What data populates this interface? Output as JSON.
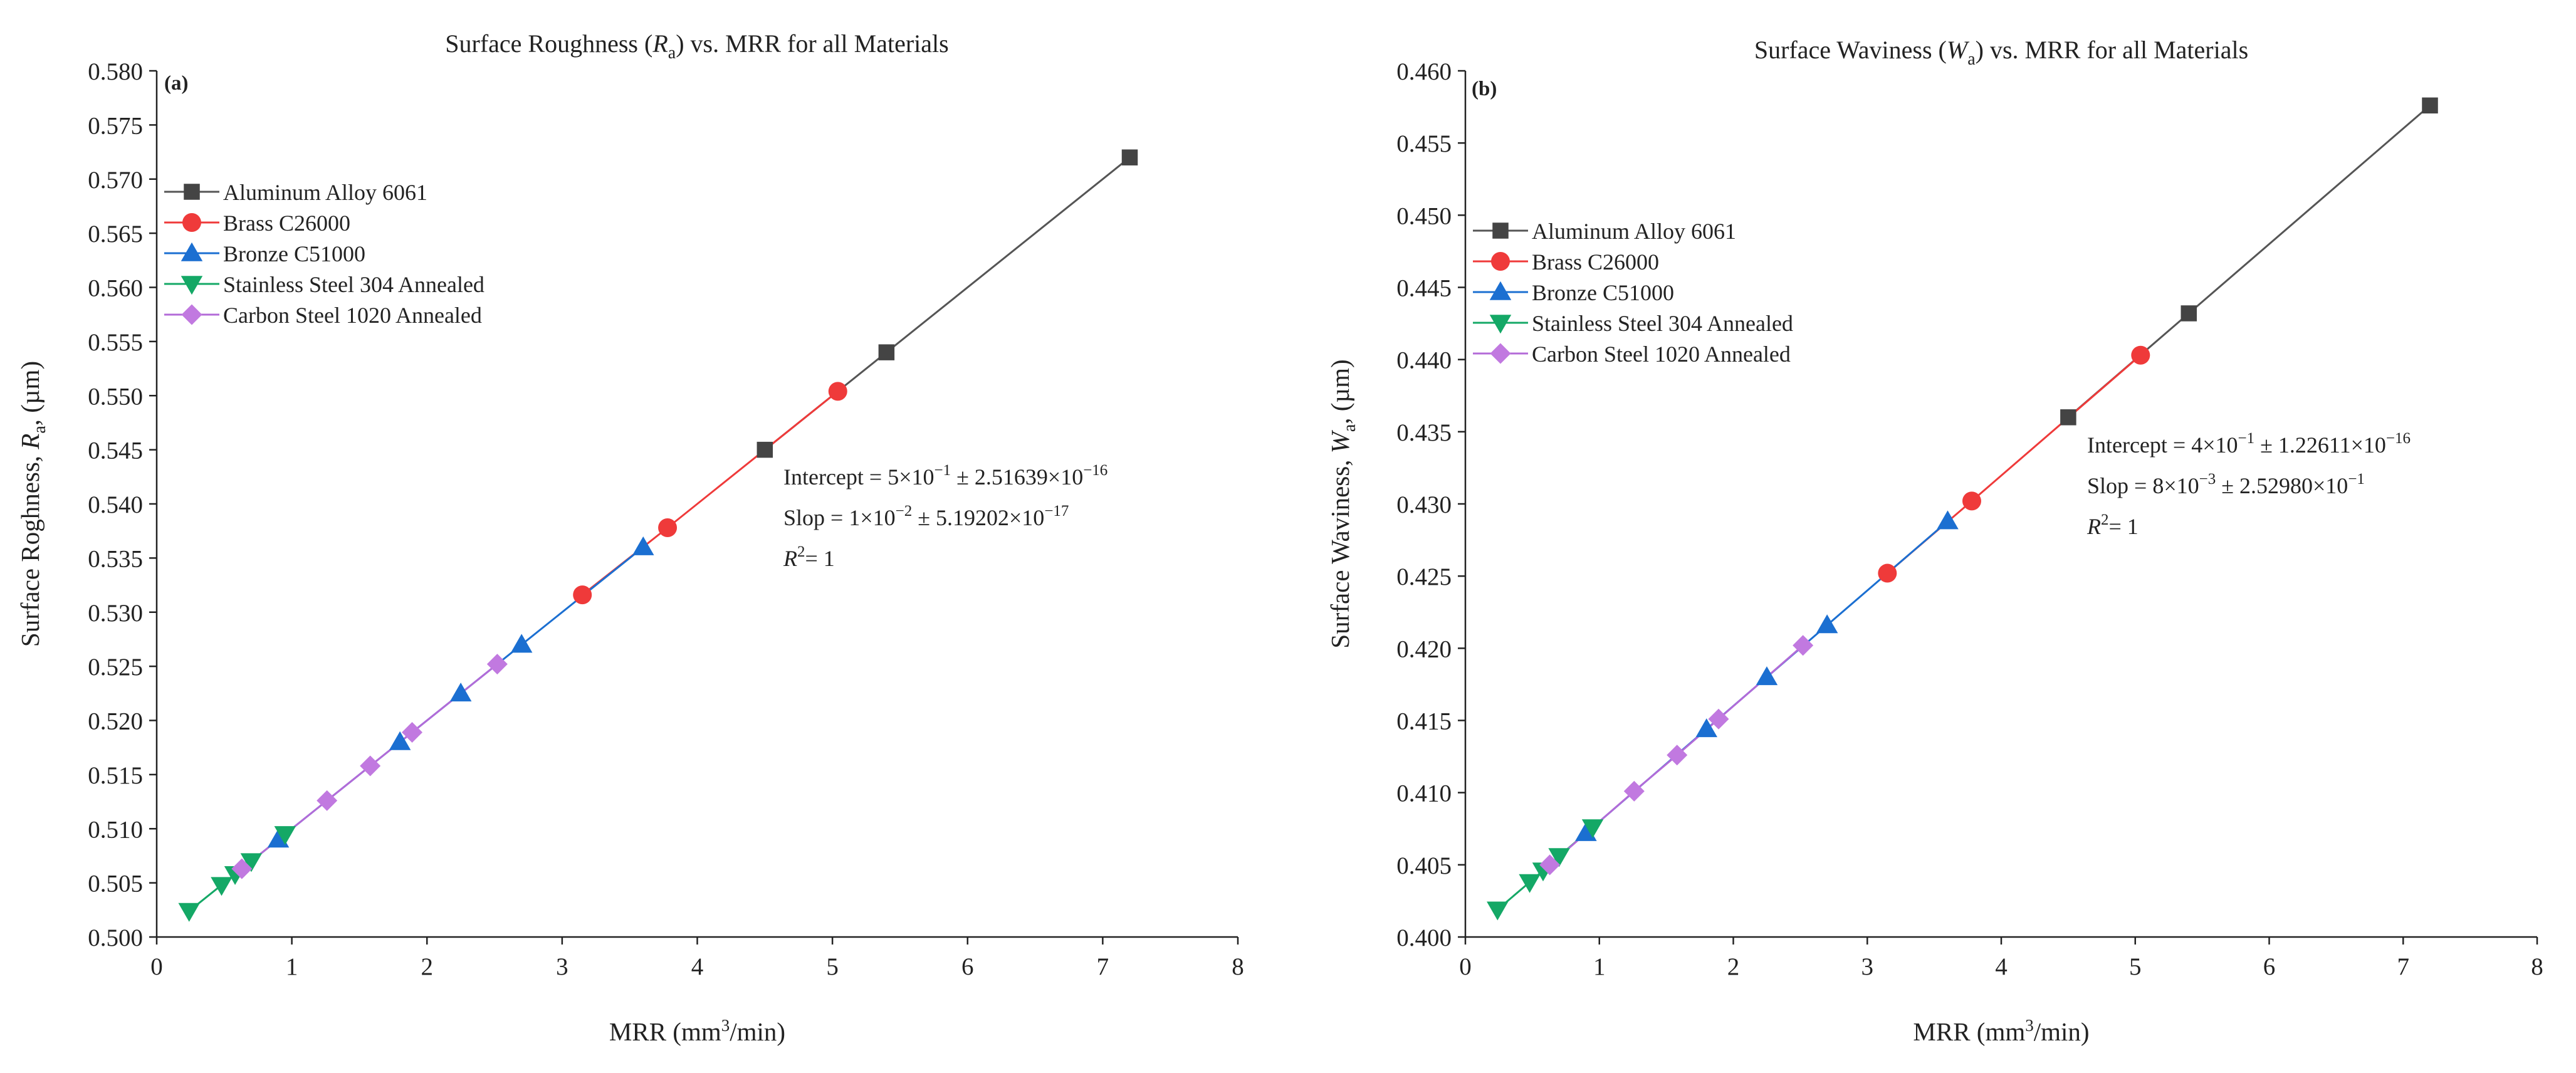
{
  "chart_data": [
    {
      "type": "line",
      "panel_label": "(a)",
      "title_pre": "Surface Roughness (",
      "title_sym": "R",
      "title_sub": "a",
      "title_post": ") vs. MRR for all Materials",
      "ylabel_pre": "Surface Roghness, ",
      "ylabel_sym": "R",
      "ylabel_sub": "a",
      "ylabel_post": ", (µm)",
      "xlabel_pre": "MRR (mm",
      "xlabel_sup": "3",
      "xlabel_post": "/min)",
      "xlim": [
        0,
        8
      ],
      "ylim": [
        0.5,
        0.58
      ],
      "xticks": [
        "0",
        "1",
        "2",
        "3",
        "4",
        "5",
        "6",
        "7",
        "8"
      ],
      "yticks": [
        "0.500",
        "0.505",
        "0.510",
        "0.515",
        "0.520",
        "0.525",
        "0.530",
        "0.535",
        "0.540",
        "0.545",
        "0.550",
        "0.555",
        "0.560",
        "0.565",
        "0.570",
        "0.575",
        "0.580"
      ],
      "legend": "top-left",
      "series": [
        {
          "name": "Aluminum Alloy 6061",
          "marker": "square",
          "color": "#444444",
          "line_color": "#555555",
          "x": [
            4.5,
            5.4,
            7.2
          ],
          "y": [
            0.545,
            0.554,
            0.572
          ]
        },
        {
          "name": "Brass C26000",
          "marker": "circle",
          "color": "#ef3a3a",
          "line_color": "#ef3a3a",
          "x": [
            3.15,
            3.78,
            5.04
          ],
          "y": [
            0.5316,
            0.5378,
            0.5504
          ]
        },
        {
          "name": "Bronze C51000",
          "marker": "triangle-up",
          "color": "#1b6fd1",
          "line_color": "#1b6fd1",
          "x": [
            0.9,
            1.8,
            2.25,
            2.7,
            3.6
          ],
          "y": [
            0.509,
            0.518,
            0.5225,
            0.527,
            0.536
          ]
        },
        {
          "name": "Stainless Steel 304 Annealed",
          "marker": "triangle-down",
          "color": "#14a866",
          "line_color": "#14a866",
          "x": [
            0.24,
            0.48,
            0.58,
            0.7,
            0.95
          ],
          "y": [
            0.5024,
            0.5048,
            0.5058,
            0.507,
            0.5095
          ]
        },
        {
          "name": "Carbon Steel 1020 Annealed",
          "marker": "diamond",
          "color": "#c179e0",
          "line_color": "#b36bd8",
          "x": [
            0.63,
            1.26,
            1.58,
            1.89,
            2.52
          ],
          "y": [
            0.5063,
            0.5126,
            0.5158,
            0.5189,
            0.5252
          ]
        }
      ],
      "annotation": {
        "intercept": [
          "Intercept = 5×10",
          "−1",
          " ±  2.51639×10",
          "−16"
        ],
        "slope": [
          "Slop = 1×10",
          "−2",
          " ± 5.19202×10",
          "−17"
        ],
        "r2": [
          "R",
          "2",
          "= 1"
        ]
      }
    },
    {
      "type": "line",
      "panel_label": "(b)",
      "title_pre": "Surface Waviness (",
      "title_sym": "W",
      "title_sub": "a",
      "title_post": ") vs. MRR for all Materials",
      "ylabel_pre": "Surface Waviness, ",
      "ylabel_sym": "W",
      "ylabel_sub": "a",
      "ylabel_post": ", (µm)",
      "xlabel_pre": "MRR (mm",
      "xlabel_sup": "3",
      "xlabel_post": "/min)",
      "xlim": [
        0,
        8
      ],
      "ylim": [
        0.4,
        0.46
      ],
      "xticks": [
        "0",
        "1",
        "2",
        "3",
        "4",
        "5",
        "6",
        "7",
        "8"
      ],
      "yticks": [
        "0.400",
        "0.405",
        "0.410",
        "0.415",
        "0.420",
        "0.425",
        "0.430",
        "0.435",
        "0.440",
        "0.445",
        "0.450",
        "0.455",
        "0.460"
      ],
      "legend": "top-left",
      "series": [
        {
          "name": "Aluminum Alloy 6061",
          "marker": "square",
          "color": "#444444",
          "line_color": "#555555",
          "x": [
            4.5,
            5.4,
            7.2
          ],
          "y": [
            0.436,
            0.4432,
            0.4576
          ]
        },
        {
          "name": "Brass C26000",
          "marker": "circle",
          "color": "#ef3a3a",
          "line_color": "#ef3a3a",
          "x": [
            3.15,
            3.78,
            5.04
          ],
          "y": [
            0.4252,
            0.4302,
            0.4403
          ]
        },
        {
          "name": "Bronze C51000",
          "marker": "triangle-up",
          "color": "#1b6fd1",
          "line_color": "#1b6fd1",
          "x": [
            0.9,
            1.8,
            2.25,
            2.7,
            3.6
          ],
          "y": [
            0.4072,
            0.4144,
            0.418,
            0.4216,
            0.4288
          ]
        },
        {
          "name": "Stainless Steel 304 Annealed",
          "marker": "triangle-down",
          "color": "#14a866",
          "line_color": "#14a866",
          "x": [
            0.24,
            0.48,
            0.58,
            0.7,
            0.95
          ],
          "y": [
            0.4019,
            0.4038,
            0.4046,
            0.4056,
            0.4076
          ]
        },
        {
          "name": "Carbon Steel 1020 Annealed",
          "marker": "diamond",
          "color": "#c179e0",
          "line_color": "#b36bd8",
          "x": [
            0.63,
            1.26,
            1.58,
            1.89,
            2.52
          ],
          "y": [
            0.405,
            0.4101,
            0.4126,
            0.4151,
            0.4202
          ]
        }
      ],
      "annotation": {
        "intercept": [
          "Intercept = 4×10",
          "−1",
          " ± 1.22611×10",
          "−16"
        ],
        "slope": [
          "Slop = 8×10",
          "−3",
          " ± 2.52980×10",
          "−1"
        ],
        "r2": [
          "R",
          "2",
          "= 1"
        ]
      }
    }
  ],
  "colors": {
    "panel_label": "#9b00d6",
    "axis": "#222222"
  }
}
